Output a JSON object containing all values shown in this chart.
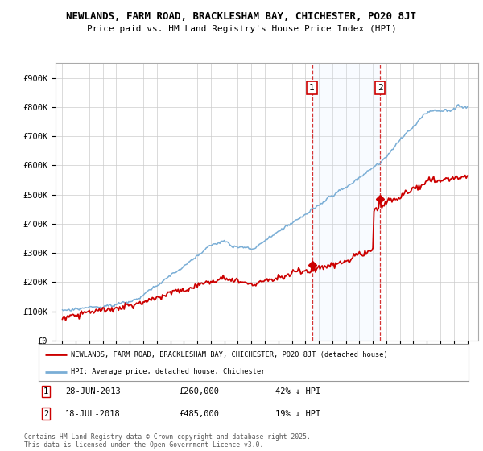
{
  "title1": "NEWLANDS, FARM ROAD, BRACKLESHAM BAY, CHICHESTER, PO20 8JT",
  "title2": "Price paid vs. HM Land Registry's House Price Index (HPI)",
  "bg_color": "#ffffff",
  "grid_color": "#cccccc",
  "hpi_color": "#7aaed6",
  "hpi_fill_color": "#ddeeff",
  "price_color": "#cc0000",
  "sale1_date": "28-JUN-2013",
  "sale1_price": 260000,
  "sale1_pct": "42% ↓ HPI",
  "sale2_date": "18-JUL-2018",
  "sale2_price": 485000,
  "sale2_pct": "19% ↓ HPI",
  "legend_label1": "NEWLANDS, FARM ROAD, BRACKLESHAM BAY, CHICHESTER, PO20 8JT (detached house)",
  "legend_label2": "HPI: Average price, detached house, Chichester",
  "footnote": "Contains HM Land Registry data © Crown copyright and database right 2025.\nThis data is licensed under the Open Government Licence v3.0.",
  "sale1_x": 2013.49,
  "sale2_x": 2018.54,
  "ylim_max": 950000,
  "yticks": [
    0,
    100000,
    200000,
    300000,
    400000,
    500000,
    600000,
    700000,
    800000,
    900000
  ],
  "ytick_labels": [
    "£0",
    "£100K",
    "£200K",
    "£300K",
    "£400K",
    "£500K",
    "£600K",
    "£700K",
    "£800K",
    "£900K"
  ]
}
